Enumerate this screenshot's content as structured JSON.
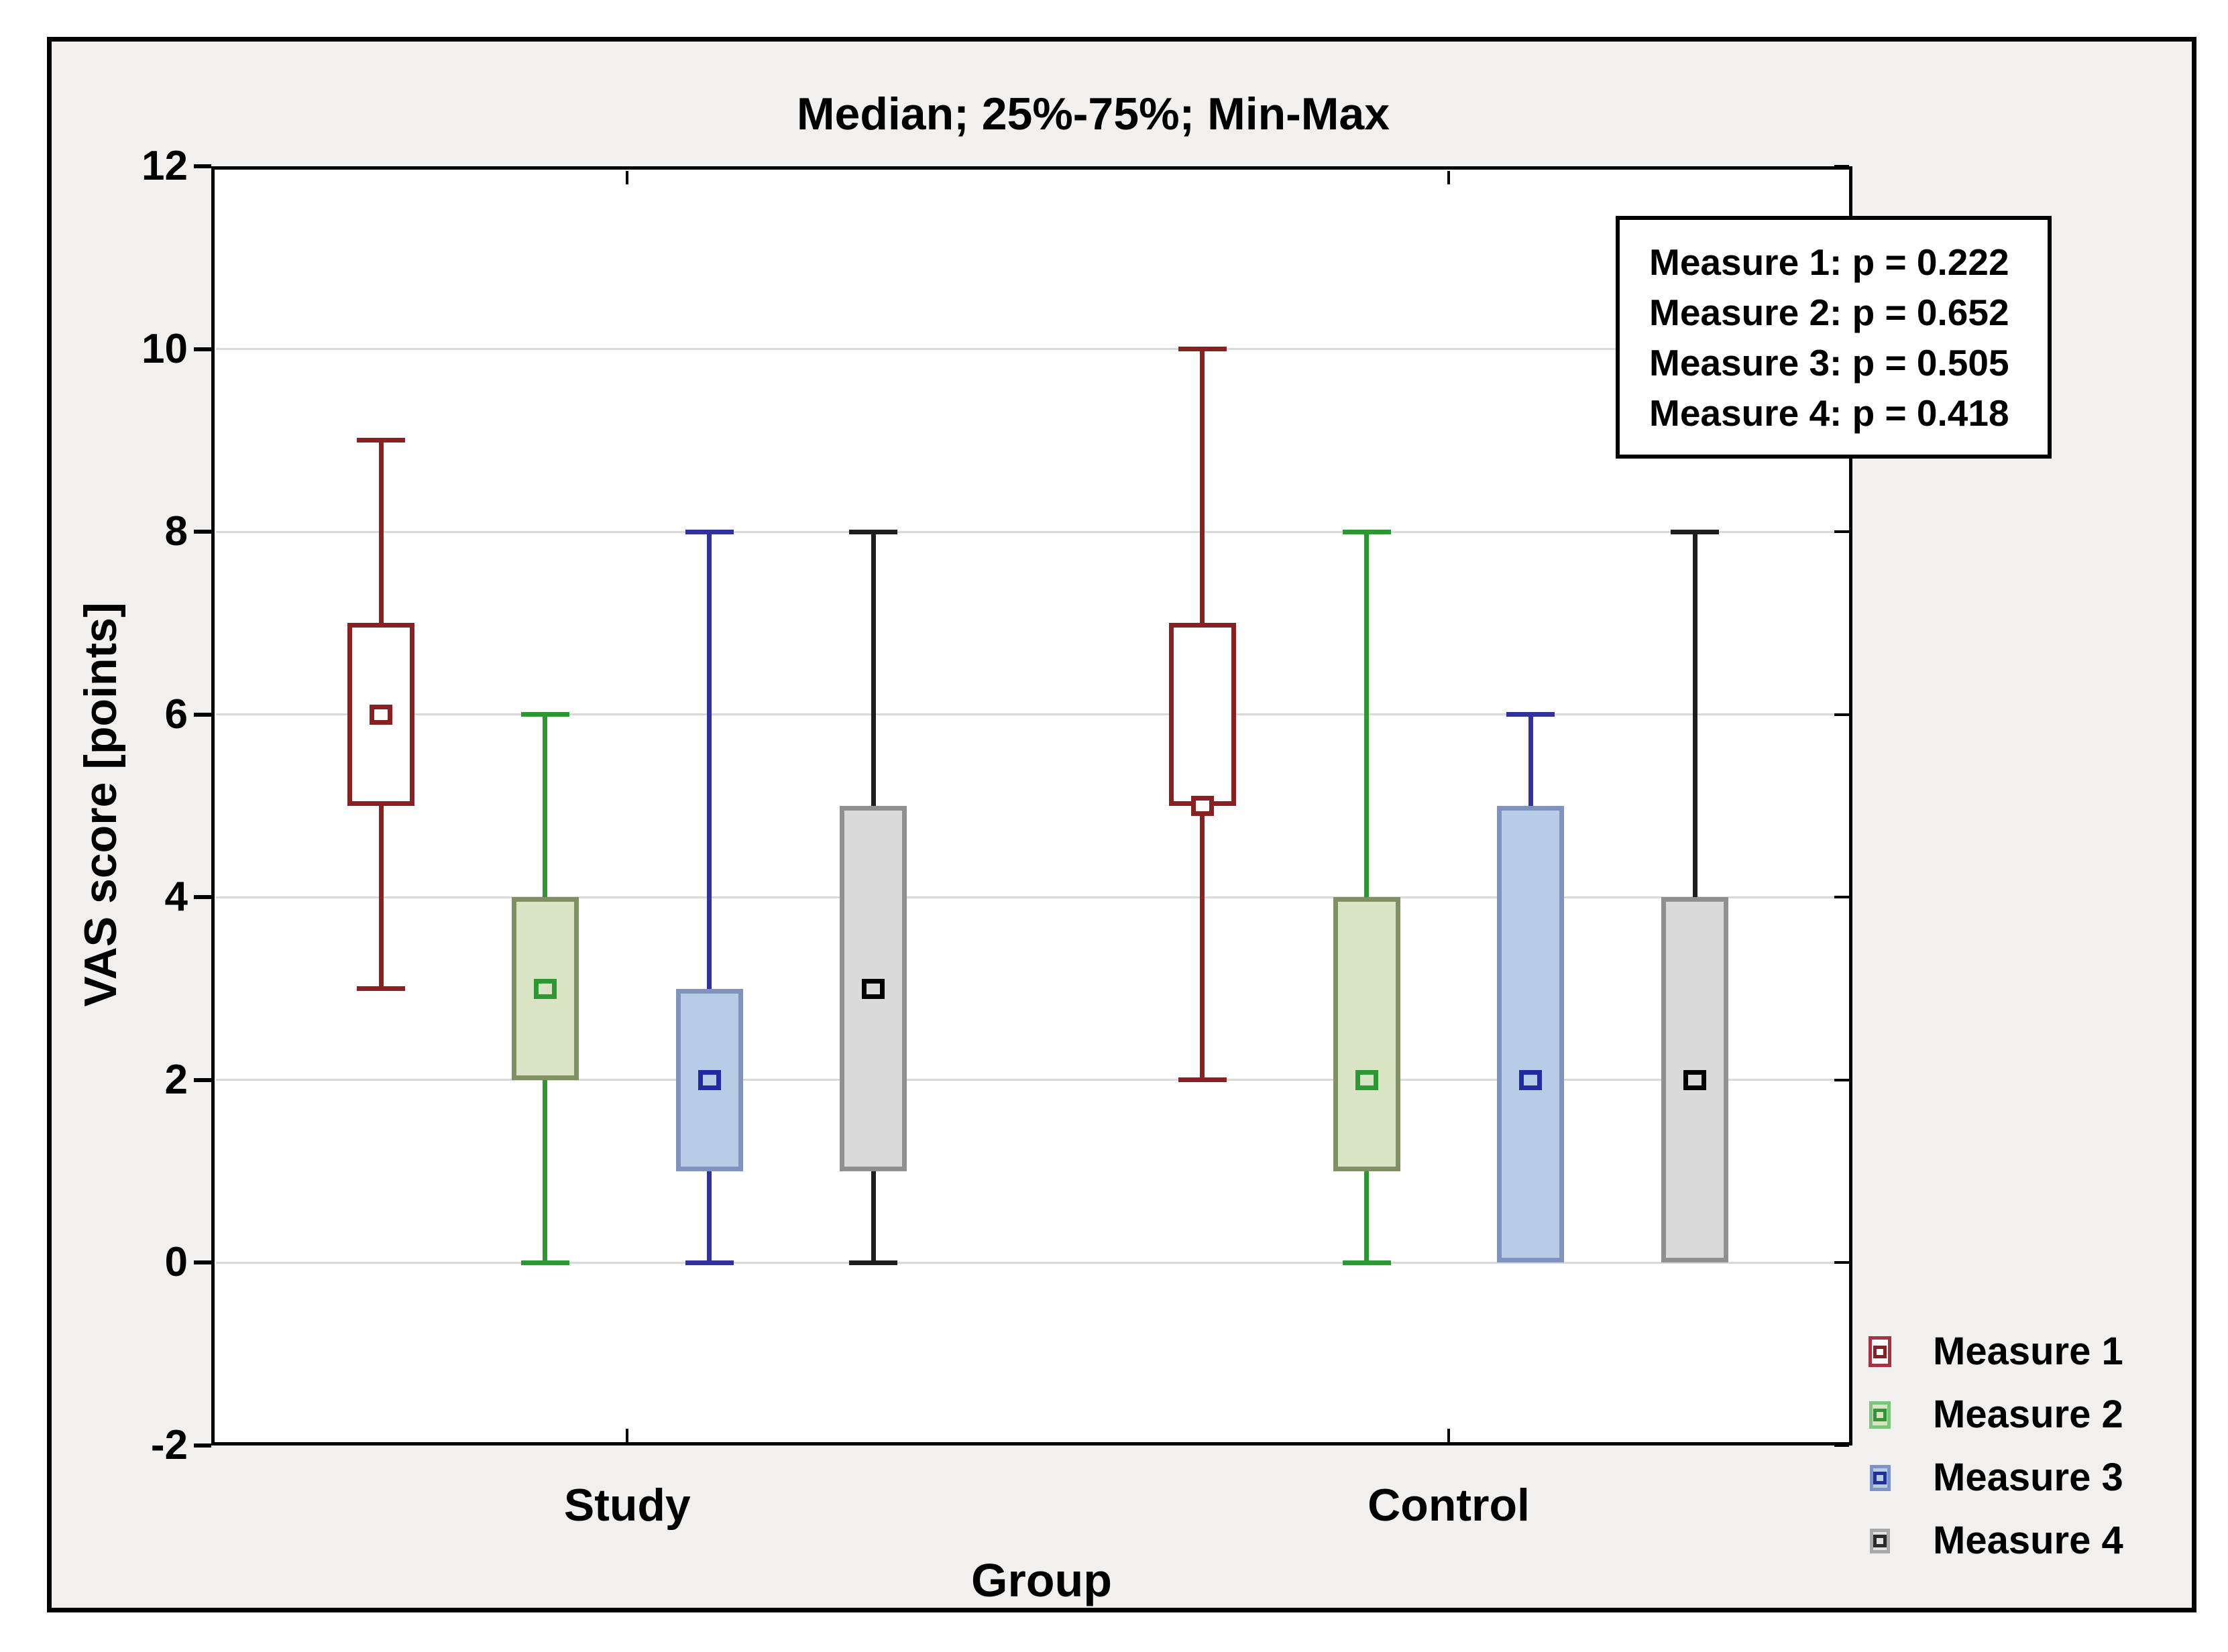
{
  "title": "Median; 25%-75%; Min-Max",
  "y_axis": {
    "label": "VAS score [points]",
    "min": -2,
    "max": 12,
    "ticks": [
      12,
      10,
      8,
      6,
      4,
      2,
      0,
      -2
    ],
    "gridlines": [
      10,
      8,
      6,
      4,
      2,
      0
    ]
  },
  "x_axis": {
    "label": "Group",
    "categories": [
      "Study",
      "Control"
    ]
  },
  "annotation_box": {
    "lines": [
      "Measure 1: p = 0.222",
      "Measure 2: p = 0.652",
      "Measure 3: p = 0.505",
      "Measure 4: p = 0.418"
    ]
  },
  "legend": {
    "items": [
      {
        "label": "Measure 1",
        "outer_border": "#a83240",
        "fill": "#ffffff",
        "inner": "#8b1f24"
      },
      {
        "label": "Measure 2",
        "outer_border": "#7cc47c",
        "fill": "#d9e4c4",
        "inner": "#2d9733"
      },
      {
        "label": "Measure 3",
        "outer_border": "#7b93c8",
        "fill": "#b7cde6",
        "inner": "#22309e"
      },
      {
        "label": "Measure 4",
        "outer_border": "#a8a8a8",
        "fill": "#e2e2e2",
        "inner": "#2a2a2a"
      }
    ]
  },
  "colors": {
    "figure_bg": "#f1f0ee",
    "plot_bg": "#ffffff",
    "gridline": "#d9d9d9",
    "frame_border": "#000000"
  },
  "chart_data": {
    "type": "boxplot",
    "title": "Median; 25%-75%; Min-Max",
    "xlabel": "Group",
    "ylabel": "VAS score [points]",
    "ylim": [
      -2,
      12
    ],
    "yticks": [
      -2,
      0,
      2,
      4,
      6,
      8,
      10,
      12
    ],
    "grid": "horizontal, step 2",
    "legend_position": "bottom-right",
    "center_definition": "Median",
    "box_definition": "25%-75%",
    "whisker_definition": "Min-Max",
    "categories": [
      "Study",
      "Control"
    ],
    "series": [
      {
        "name": "Measure 1",
        "p_value": 0.222,
        "colors": {
          "whisker": "#8b2023",
          "box_border": "#8b2023",
          "box_fill": "#ffffff",
          "median": "#8b2023"
        },
        "boxes": [
          {
            "category": "Study",
            "min": 3,
            "q1": 5,
            "median": 6,
            "q3": 7,
            "max": 9
          },
          {
            "category": "Control",
            "min": 2,
            "q1": 5,
            "median": 5,
            "q3": 7,
            "max": 10
          }
        ]
      },
      {
        "name": "Measure 2",
        "p_value": 0.652,
        "colors": {
          "whisker": "#2d9733",
          "box_border": "#7f9163",
          "box_fill": "#d9e4c4",
          "median": "#2d9733"
        },
        "boxes": [
          {
            "category": "Study",
            "min": 0,
            "q1": 2,
            "median": 3,
            "q3": 4,
            "max": 6
          },
          {
            "category": "Control",
            "min": 0,
            "q1": 1,
            "median": 2,
            "q3": 4,
            "max": 8
          }
        ]
      },
      {
        "name": "Measure 3",
        "p_value": 0.505,
        "colors": {
          "whisker": "#32329f",
          "box_border": "#8093bc",
          "box_fill": "#b7cde6",
          "median": "#1f2b9e"
        },
        "boxes": [
          {
            "category": "Study",
            "min": 0,
            "q1": 1,
            "median": 2,
            "q3": 3,
            "max": 8
          },
          {
            "category": "Control",
            "min": 0,
            "q1": 0,
            "median": 2,
            "q3": 5,
            "max": 6
          }
        ]
      },
      {
        "name": "Measure 4",
        "p_value": 0.418,
        "colors": {
          "whisker": "#1e1e1e",
          "box_border": "#909090",
          "box_fill": "#dadada",
          "median": "#000000"
        },
        "boxes": [
          {
            "category": "Study",
            "min": 0,
            "q1": 1,
            "median": 3,
            "q3": 5,
            "max": 8
          },
          {
            "category": "Control",
            "min": 0,
            "q1": 0,
            "median": 2,
            "q3": 4,
            "max": 8
          }
        ]
      }
    ]
  }
}
